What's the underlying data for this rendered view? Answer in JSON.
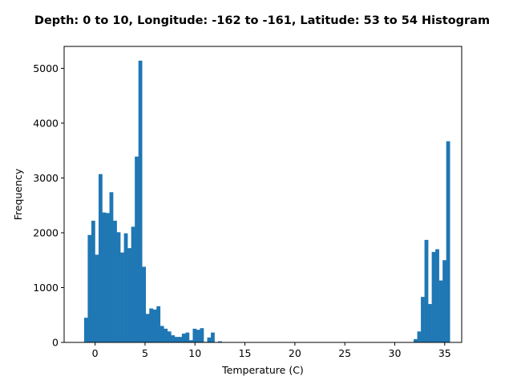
{
  "chart_data": {
    "type": "bar",
    "title": "Depth: 0 to 10, Longitude: -162 to -161, Latitude: 53 to 54 Histogram",
    "xlabel": "Temperature (C)",
    "ylabel": "Frequency",
    "xlim": [
      -3.1,
      36.7
    ],
    "ylim": [
      0,
      5400
    ],
    "xticks": [
      0,
      5,
      10,
      15,
      20,
      25,
      30,
      35
    ],
    "yticks": [
      0,
      1000,
      2000,
      3000,
      4000,
      5000
    ],
    "grid": false,
    "legend": "none",
    "bar_color": "#1f77b4",
    "bins": {
      "start": -1.1,
      "width": 0.3625,
      "counts": [
        450,
        1960,
        2220,
        1600,
        3070,
        2370,
        2360,
        2740,
        2220,
        2010,
        1640,
        1990,
        1720,
        2110,
        3390,
        5140,
        1380,
        520,
        620,
        600,
        660,
        300,
        250,
        200,
        130,
        100,
        100,
        160,
        180,
        40,
        250,
        230,
        260,
        10,
        90,
        180,
        0,
        20,
        0,
        0,
        0,
        0,
        0,
        0,
        0,
        0,
        0,
        0,
        0,
        0,
        0,
        0,
        0,
        0,
        0,
        0,
        0,
        0,
        0,
        0,
        0,
        0,
        0,
        0,
        0,
        0,
        0,
        0,
        0,
        0,
        0,
        0,
        0,
        0,
        0,
        0,
        0,
        0,
        0,
        0,
        0,
        0,
        0,
        0,
        0,
        0,
        0,
        0,
        0,
        0,
        0,
        60,
        200,
        830,
        1870,
        700,
        1650,
        1700,
        1130,
        1500,
        3670
      ]
    }
  }
}
